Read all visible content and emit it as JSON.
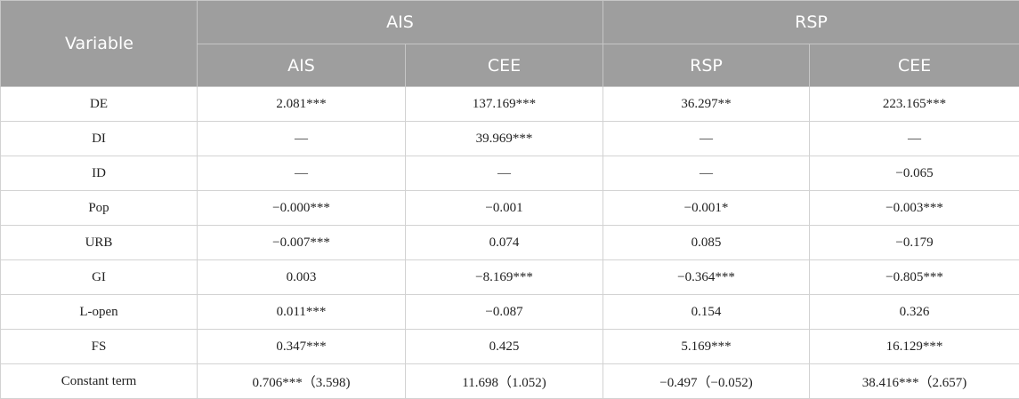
{
  "table": {
    "header": {
      "variable_label": "Variable",
      "groups": [
        "AIS",
        "RSP"
      ],
      "columns": [
        "AIS",
        "CEE",
        "RSP",
        "CEE"
      ]
    },
    "rows": [
      {
        "label": "DE",
        "cells": [
          "2.081***",
          "137.169***",
          "36.297**",
          "223.165***"
        ]
      },
      {
        "label": "DI",
        "cells": [
          "—",
          "39.969***",
          "—",
          "—"
        ]
      },
      {
        "label": "ID",
        "cells": [
          "—",
          "—",
          "—",
          "−0.065"
        ]
      },
      {
        "label": "Pop",
        "cells": [
          "−0.000***",
          "−0.001",
          "−0.001*",
          "−0.003***"
        ]
      },
      {
        "label": "URB",
        "cells": [
          "−0.007***",
          "0.074",
          "0.085",
          "−0.179"
        ]
      },
      {
        "label": "GI",
        "cells": [
          "0.003",
          "−8.169***",
          "−0.364***",
          "−0.805***"
        ]
      },
      {
        "label": "L-open",
        "cells": [
          "0.011***",
          "−0.087",
          "0.154",
          "0.326"
        ]
      },
      {
        "label": "FS",
        "cells": [
          "0.347***",
          "0.425",
          "5.169***",
          "16.129***"
        ]
      },
      {
        "label": "Constant term",
        "cells": [
          "0.706***（3.598)",
          "11.698（1.052)",
          "−0.497（−0.052)",
          "38.416***（2.657)"
        ]
      }
    ]
  }
}
